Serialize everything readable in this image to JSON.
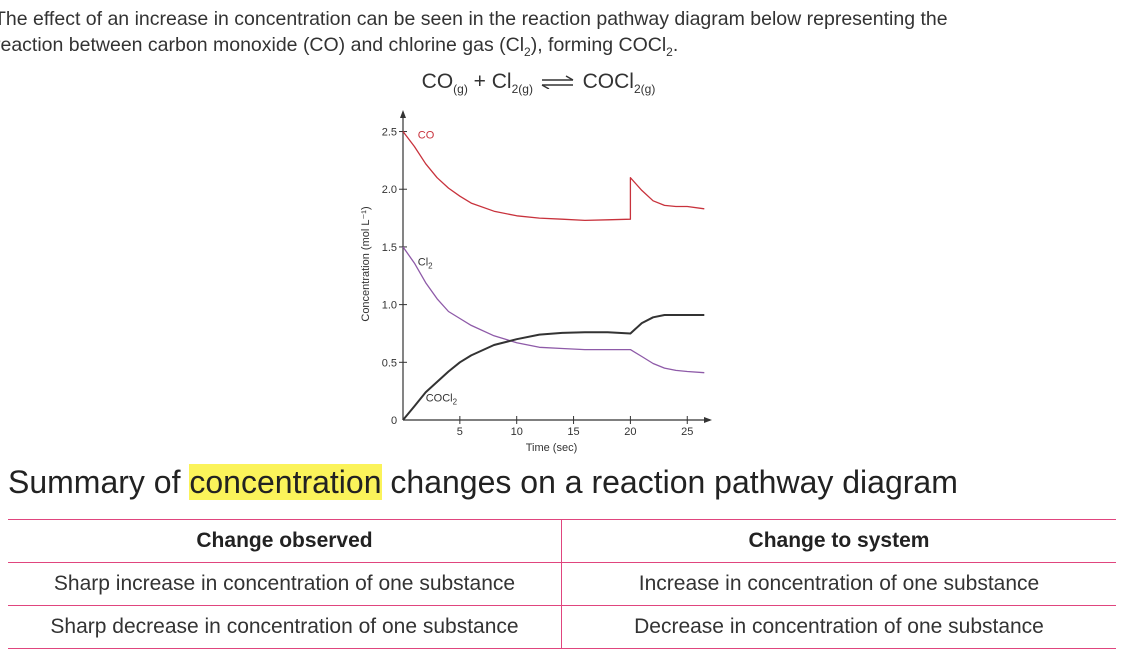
{
  "intro": {
    "line1": "The effect of an increase in concentration can be seen in the reaction pathway diagram below representing the",
    "line2_a": "reaction between carbon monoxide (CO) and chlorine gas (Cl",
    "line2_sub": "2",
    "line2_b": "), forming COCl",
    "line2_sub2": "2",
    "line2_c": "."
  },
  "equation": {
    "co": "CO",
    "co_state": "(g)",
    "plus": "+ Cl",
    "cl_state": "2(g)",
    "product": "COCl",
    "product_state": "2(g)"
  },
  "chart_data": {
    "type": "line",
    "title": "",
    "xlabel": "Time (sec)",
    "ylabel": "Concentration (mol L⁻¹)",
    "xlim": [
      0,
      27
    ],
    "ylim": [
      0,
      2.6
    ],
    "x_ticks": [
      5,
      10,
      15,
      20,
      25
    ],
    "y_ticks": [
      0.5,
      1.0,
      1.5,
      2.0,
      2.5
    ],
    "x_tick_labels": [
      "5",
      "10",
      "15",
      "20",
      "25"
    ],
    "y_tick_labels": [
      "0.5",
      "1.0",
      "1.5",
      "2.0",
      "2.5"
    ],
    "origin_label": "0",
    "grid": false,
    "series": [
      {
        "name": "CO",
        "label": "CO",
        "label_sub": "",
        "color": "#c8323c",
        "points": [
          [
            0,
            2.5
          ],
          [
            1,
            2.37
          ],
          [
            2,
            2.22
          ],
          [
            3,
            2.1
          ],
          [
            4,
            2.01
          ],
          [
            5,
            1.94
          ],
          [
            6,
            1.88
          ],
          [
            8,
            1.81
          ],
          [
            10,
            1.77
          ],
          [
            12,
            1.75
          ],
          [
            14,
            1.74
          ],
          [
            16,
            1.73
          ],
          [
            18,
            1.735
          ],
          [
            20,
            1.74
          ],
          [
            20.001,
            2.1
          ],
          [
            21,
            1.99
          ],
          [
            22,
            1.9
          ],
          [
            23,
            1.86
          ],
          [
            24,
            1.85
          ],
          [
            25,
            1.85
          ],
          [
            26.5,
            1.83
          ]
        ],
        "label_at": [
          1.3,
          2.44
        ]
      },
      {
        "name": "Cl2",
        "label": "Cl",
        "label_sub": "2",
        "color": "#8e5aa8",
        "points": [
          [
            0,
            1.5
          ],
          [
            1,
            1.36
          ],
          [
            2,
            1.19
          ],
          [
            3,
            1.05
          ],
          [
            4,
            0.94
          ],
          [
            5,
            0.88
          ],
          [
            6,
            0.82
          ],
          [
            8,
            0.73
          ],
          [
            10,
            0.67
          ],
          [
            12,
            0.63
          ],
          [
            14,
            0.62
          ],
          [
            16,
            0.61
          ],
          [
            18,
            0.61
          ],
          [
            20,
            0.61
          ],
          [
            21,
            0.55
          ],
          [
            22,
            0.49
          ],
          [
            23,
            0.45
          ],
          [
            24,
            0.43
          ],
          [
            25,
            0.42
          ],
          [
            26.5,
            0.41
          ]
        ],
        "label_at": [
          1.3,
          1.34
        ]
      },
      {
        "name": "COCl2",
        "label": "COCl",
        "label_sub": "2",
        "color": "#333333",
        "points": [
          [
            0,
            0
          ],
          [
            1,
            0.12
          ],
          [
            2,
            0.24
          ],
          [
            3,
            0.33
          ],
          [
            4,
            0.42
          ],
          [
            5,
            0.5
          ],
          [
            6,
            0.56
          ],
          [
            8,
            0.65
          ],
          [
            10,
            0.7
          ],
          [
            12,
            0.74
          ],
          [
            14,
            0.755
          ],
          [
            16,
            0.76
          ],
          [
            18,
            0.76
          ],
          [
            20,
            0.75
          ],
          [
            21,
            0.84
          ],
          [
            22,
            0.89
          ],
          [
            23,
            0.91
          ],
          [
            24,
            0.91
          ],
          [
            25,
            0.91
          ],
          [
            26.5,
            0.91
          ]
        ],
        "label_at": [
          2.0,
          0.16
        ]
      }
    ]
  },
  "summary": {
    "title_before": "Summary of ",
    "title_highlight": "concentration",
    "title_after": " changes on a reaction pathway diagram",
    "headers": [
      "Change observed",
      "Change to system"
    ],
    "rows": [
      [
        "Sharp increase in concentration of one substance",
        "Increase in concentration of one substance"
      ],
      [
        "Sharp decrease in concentration of one substance",
        "Decrease in concentration of one substance"
      ]
    ]
  }
}
